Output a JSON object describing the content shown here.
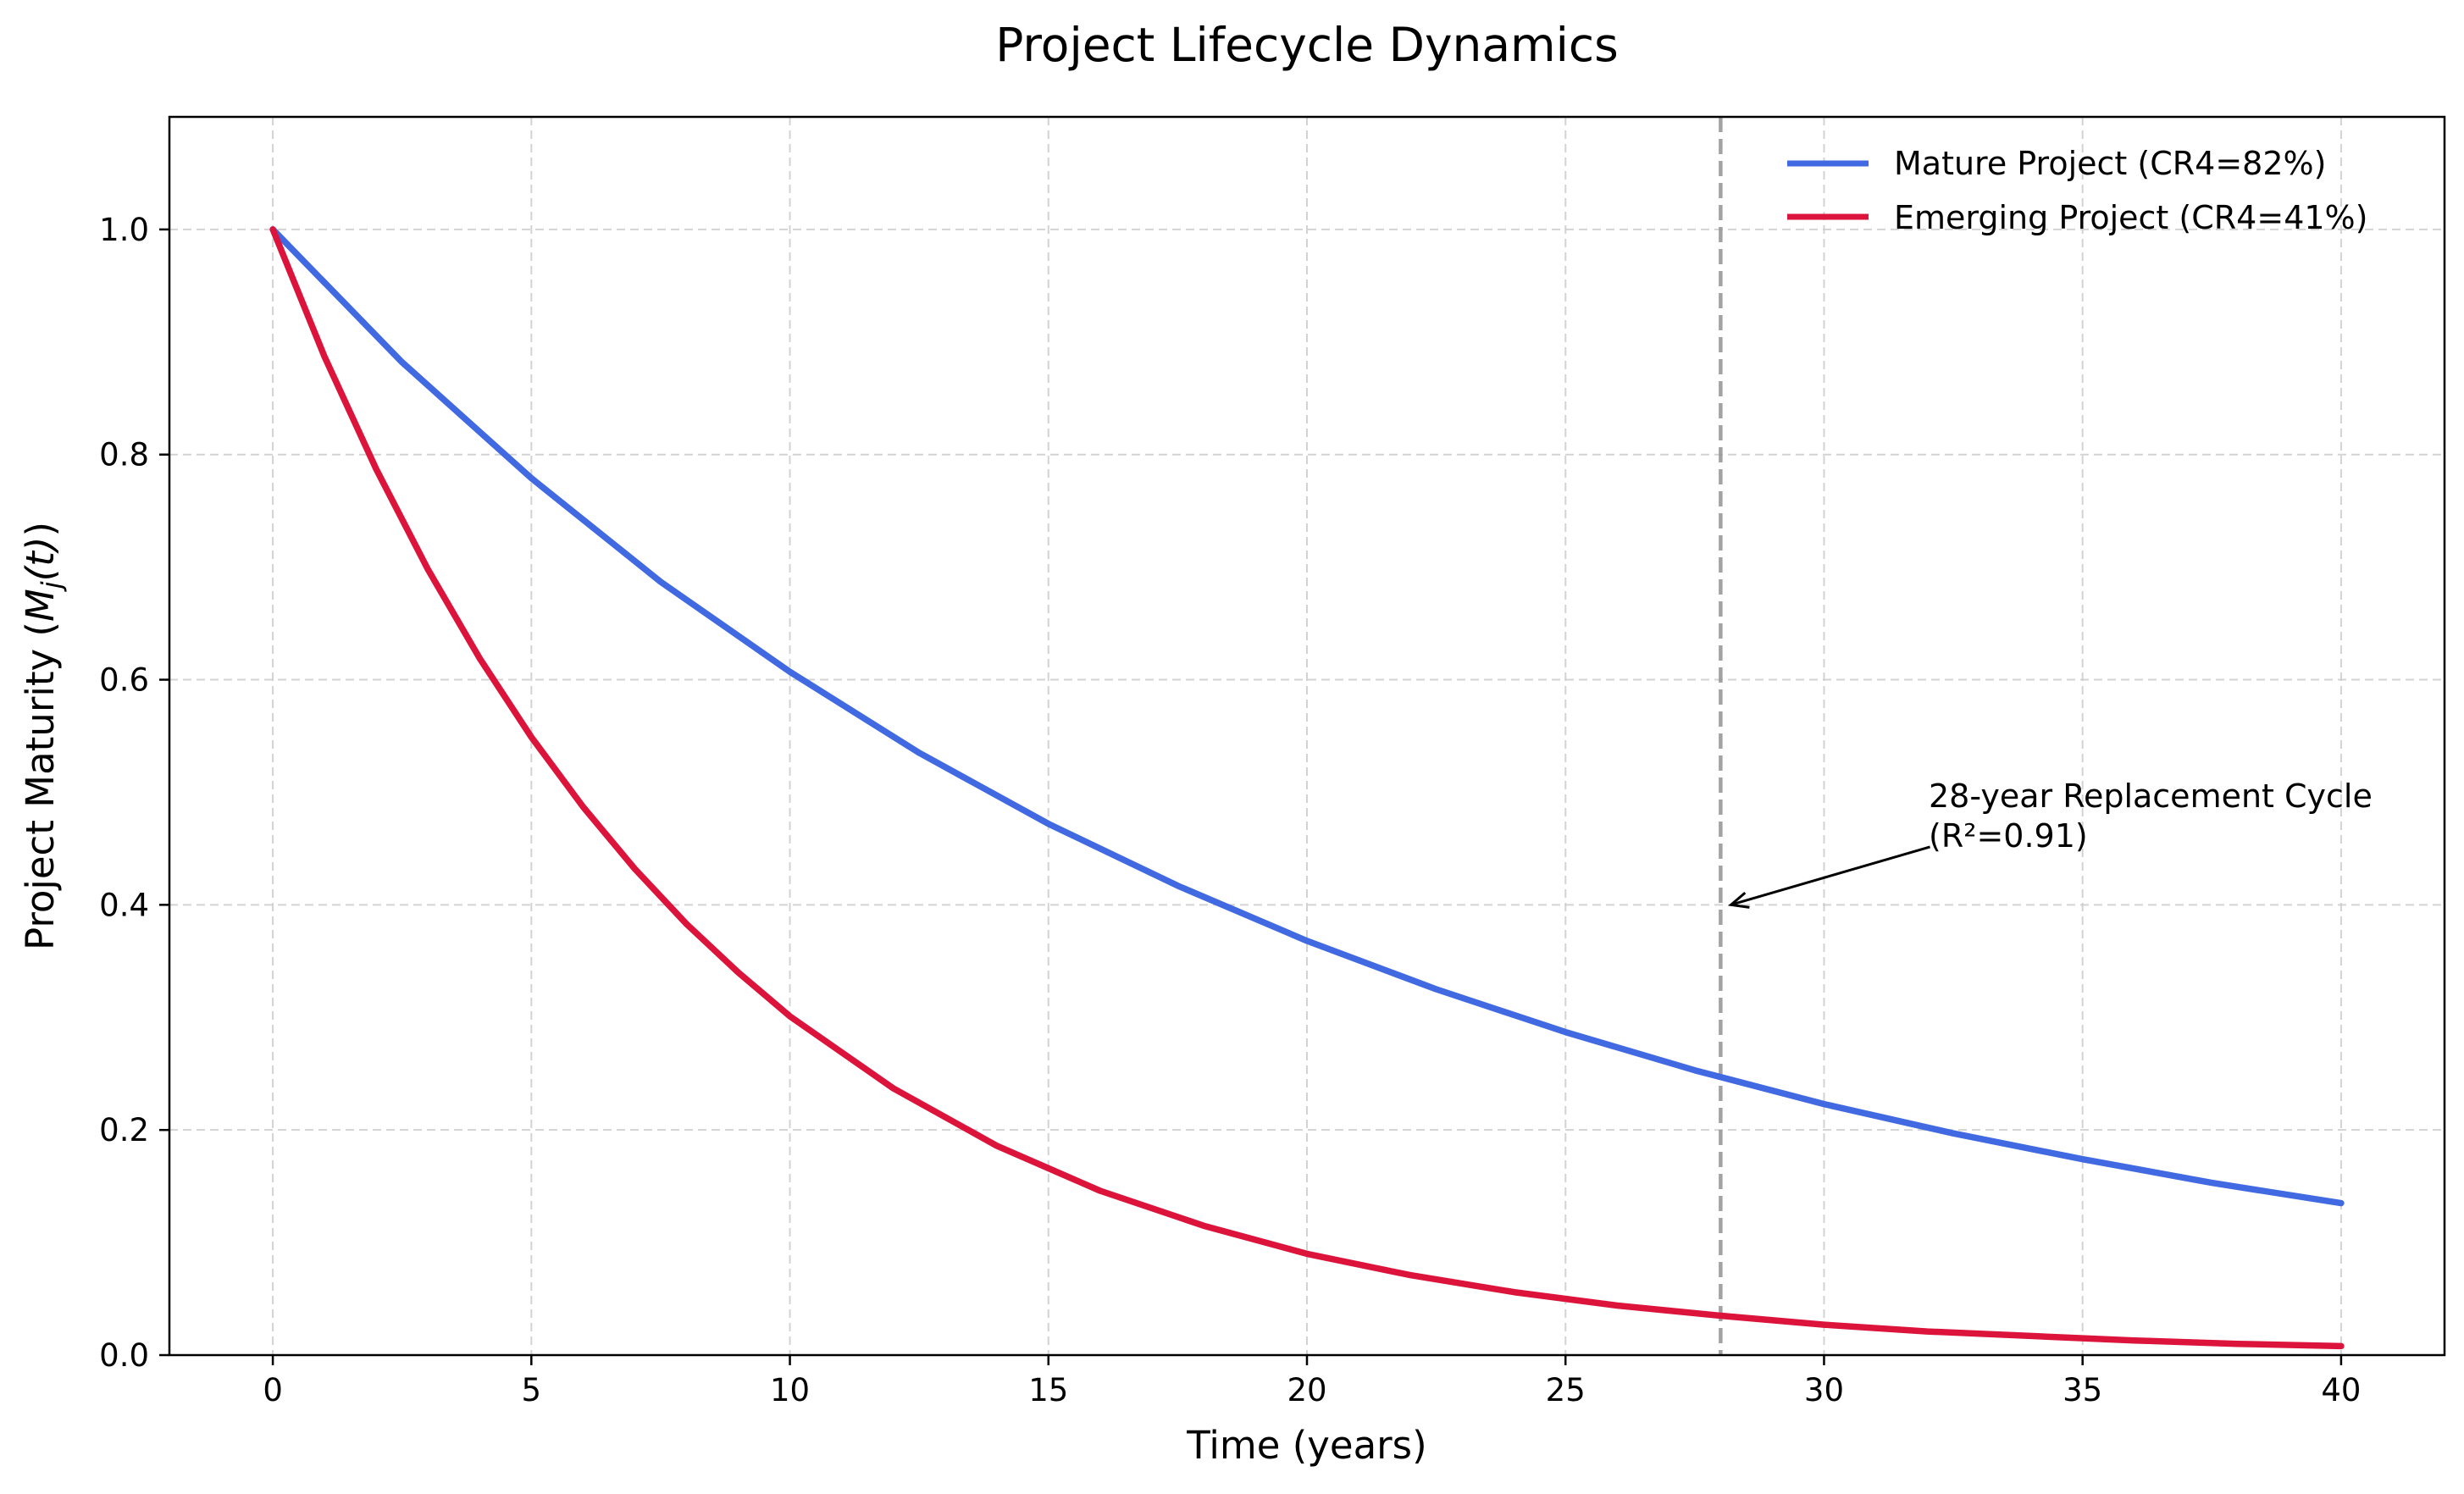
{
  "chart_data": {
    "type": "line",
    "title": "Project Lifecycle Dynamics",
    "xlabel": "Time (years)",
    "ylabel": {
      "prefix": "Project Maturity (",
      "math_main": "M",
      "math_sub": "j",
      "math_rest": "(t)",
      "suffix": ")"
    },
    "xlim": [
      -2,
      42
    ],
    "ylim": [
      0,
      1.1
    ],
    "xticks": [
      0,
      5,
      10,
      15,
      20,
      25,
      30,
      35,
      40
    ],
    "yticks": [
      0.0,
      0.2,
      0.4,
      0.6,
      0.8,
      1.0
    ],
    "ytick_labels": [
      "0.0",
      "0.2",
      "0.4",
      "0.6",
      "0.8",
      "1.0"
    ],
    "grid": true,
    "legend_position": "top-right",
    "series": [
      {
        "name": "Mature Project (CR4=82%)",
        "color": "#4169E1",
        "x": [
          0,
          2.5,
          5,
          7.5,
          10,
          12.5,
          15,
          17.5,
          20,
          22.5,
          25,
          27.5,
          30,
          32.5,
          35,
          37.5,
          40
        ],
        "y": [
          1.0,
          0.882,
          0.779,
          0.687,
          0.607,
          0.535,
          0.472,
          0.417,
          0.368,
          0.325,
          0.287,
          0.253,
          0.223,
          0.197,
          0.174,
          0.153,
          0.135
        ]
      },
      {
        "name": "Emerging Project (CR4=41%)",
        "color": "#DC143C",
        "x": [
          0,
          1,
          2,
          3,
          4,
          5,
          6,
          7,
          8,
          9,
          10,
          12,
          14,
          16,
          18,
          20,
          22,
          24,
          26,
          28,
          30,
          32,
          34,
          36,
          38,
          40
        ],
        "y": [
          1.0,
          0.887,
          0.787,
          0.698,
          0.619,
          0.549,
          0.487,
          0.432,
          0.383,
          0.34,
          0.301,
          0.237,
          0.186,
          0.146,
          0.115,
          0.09,
          0.071,
          0.056,
          0.044,
          0.035,
          0.027,
          0.021,
          0.017,
          0.013,
          0.01,
          0.008
        ]
      }
    ],
    "reference_line": {
      "x": 28,
      "color": "#999999",
      "style": "dashed"
    },
    "annotation": {
      "text_line1": "28-year Replacement Cycle",
      "text_line2": "(R²=0.91)",
      "text_x": 32,
      "text_y": 0.45,
      "arrow_to_x": 28.2,
      "arrow_to_y": 0.4
    }
  }
}
